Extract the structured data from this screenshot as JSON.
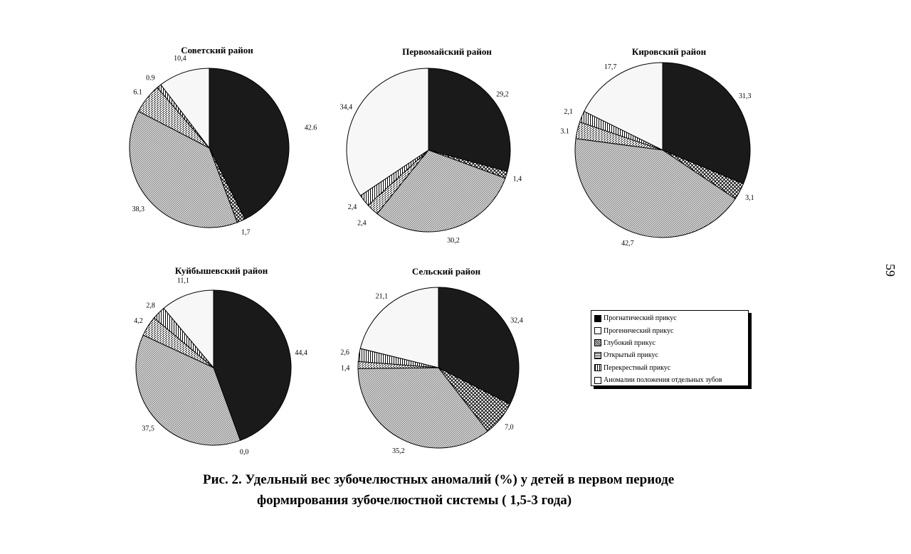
{
  "chart_data": {
    "type": "pie",
    "categories": [
      "Прогнатический прикус",
      "Прогенический прикус",
      "Глубокий прикус",
      "Открытый прикус",
      "Перекрестный прикус",
      "Аномалии положения отдельных зубов"
    ],
    "legend_position": "right",
    "charts": [
      {
        "title": "Советский район",
        "values": [
          42.6,
          1.7,
          38.3,
          6.1,
          0.9,
          10.4
        ],
        "labels": [
          "42.6",
          "1,7",
          "38,3",
          "6.1",
          "0.9",
          "10,4"
        ]
      },
      {
        "title": "Первомайский район",
        "values": [
          29.2,
          1.4,
          30.2,
          2.4,
          2.4,
          34.4
        ],
        "labels": [
          "29,2",
          "1,4",
          "30,2",
          "2,4",
          "2,4",
          "34,4"
        ]
      },
      {
        "title": "Кировский район",
        "values": [
          31.3,
          3.1,
          42.7,
          3.1,
          2.1,
          17.7
        ],
        "labels": [
          "31,3",
          "3,1",
          "42,7",
          "3.1",
          "2,1",
          "17,7"
        ]
      },
      {
        "title": "Куйбышевский район",
        "values": [
          44.4,
          0.0,
          37.5,
          4.2,
          2.8,
          11.1
        ],
        "labels": [
          "44,4",
          "0,0",
          "37,5",
          "4,2",
          "2,8",
          "11,1"
        ]
      },
      {
        "title": "Сельский район",
        "values": [
          32.4,
          7.0,
          35.2,
          1.4,
          2.6,
          21.1
        ],
        "labels": [
          "32,4",
          "7,0",
          "35,2",
          "1,4",
          "2,6",
          "21,1"
        ]
      }
    ]
  },
  "legend": {
    "items": [
      {
        "label": "Прогнатический прикус",
        "pattern": "solid-black"
      },
      {
        "label": "Прогенический прикус",
        "pattern": "cross-hatch"
      },
      {
        "label": "Глубокий прикус",
        "pattern": "diagonal-fine"
      },
      {
        "label": "Открытый прикус",
        "pattern": "horizontal-lines"
      },
      {
        "label": "Перекрестный прикус",
        "pattern": "vertical-lines"
      },
      {
        "label": "Аномалии положения отдельных зубов",
        "pattern": "white"
      }
    ]
  },
  "caption": {
    "line1": "Рис. 2. Удельный вес зубочелюстных аномалий (%)  у детей в первом периоде",
    "line2": "формирования зубочелюстной системы ( 1,5-3 года)"
  },
  "page_number": "59"
}
